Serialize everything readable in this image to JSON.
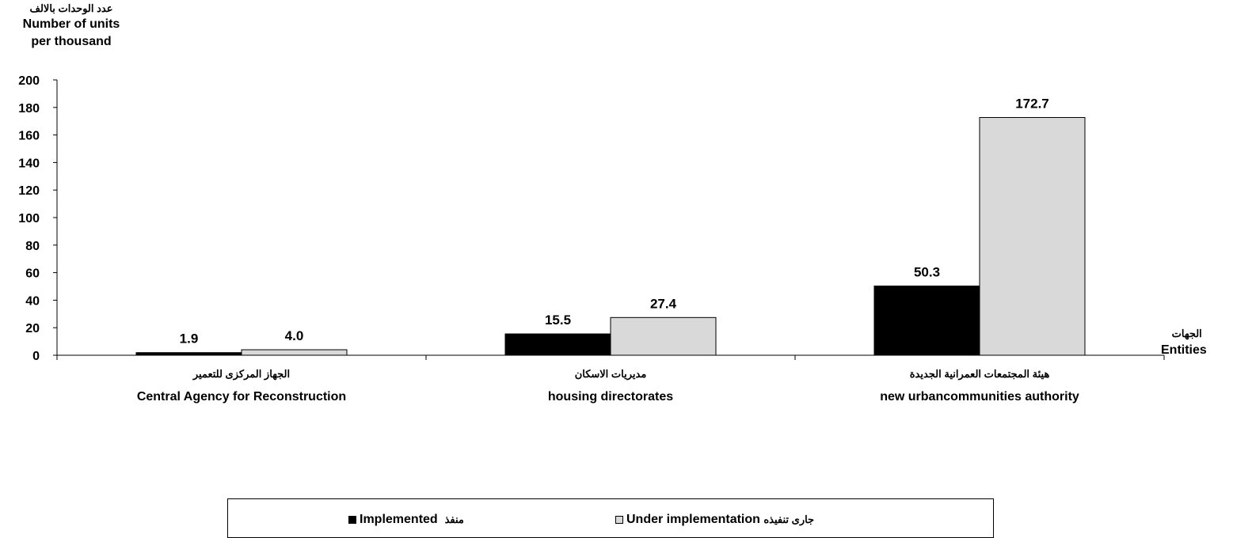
{
  "chart_data": {
    "type": "bar",
    "title": "",
    "ylabel_ar": "عدد الوحدات بالالف",
    "ylabel": "Number of units per thousand",
    "xlabel_ar": "الجهات",
    "xlabel": "Entities",
    "categories": [
      {
        "ar": "الجهاز المركزى للتعمير",
        "en": "Central Agency  for Reconstruction"
      },
      {
        "ar": "مديريات الاسكان",
        "en": "housing directorates"
      },
      {
        "ar": "هيئة المجتمعات العمرانية الجديدة",
        "en": "new urbancommunities  authority"
      }
    ],
    "series": [
      {
        "name": "Implemented",
        "name_ar": "منفذ",
        "color": "#000000",
        "values": [
          1.9,
          15.5,
          50.3
        ],
        "labels": [
          "1.9",
          "15.5",
          "50.3"
        ]
      },
      {
        "name": "Under implementation",
        "name_ar": "جارى تنفيذه",
        "color": "#d9d9d9",
        "values": [
          4.0,
          27.4,
          172.7
        ],
        "labels": [
          "4.0",
          "27.4",
          "172.7"
        ]
      }
    ],
    "ylim": [
      0,
      200
    ],
    "yticks": [
      0,
      20,
      40,
      60,
      80,
      100,
      120,
      140,
      160,
      180,
      200
    ],
    "grid": false,
    "legend_position": "bottom"
  }
}
